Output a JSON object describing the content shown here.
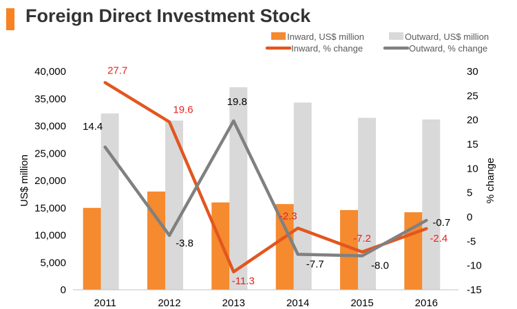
{
  "title": "Foreign Direct Investment Stock",
  "colors": {
    "accent": "#f7821f",
    "inward_bar": "#f58a2f",
    "outward_bar": "#d9d9d9",
    "inward_line": "#e2561f",
    "outward_line": "#808080",
    "inward_label": "#e8201e",
    "outward_label": "#000000"
  },
  "chart_data": {
    "type": "bar",
    "categories": [
      "2011",
      "2012",
      "2013",
      "2014",
      "2015",
      "2016"
    ],
    "series": [
      {
        "name": "Inward, US$ million",
        "type": "bar",
        "axis": "left",
        "values": [
          15000,
          18000,
          16000,
          15700,
          14600,
          14200
        ]
      },
      {
        "name": "Outward, US$ million",
        "type": "bar",
        "axis": "left",
        "values": [
          32300,
          31000,
          37100,
          34300,
          31500,
          31200
        ]
      },
      {
        "name": "Inward, % change",
        "type": "line",
        "axis": "right",
        "values": [
          27.7,
          19.6,
          -11.3,
          -2.3,
          -7.2,
          -2.4
        ],
        "labels": [
          "27.7",
          "19.6",
          "-11.3",
          "-2.3",
          "-7.2",
          "-2.4"
        ]
      },
      {
        "name": "Outward, % change",
        "type": "line",
        "axis": "right",
        "values": [
          14.4,
          -3.8,
          19.8,
          -7.7,
          -8.0,
          -0.7
        ],
        "labels": [
          "14.4",
          "-3.8",
          "19.8",
          "-7.7",
          "-8.0",
          "-0.7"
        ]
      }
    ],
    "ylabel": "US$ million",
    "y2label": "% change",
    "ylim": [
      0,
      40000
    ],
    "y2lim": [
      -15,
      30
    ],
    "yticks": [
      "0",
      "5,000",
      "10,000",
      "15,000",
      "20,000",
      "25,000",
      "30,000",
      "35,000",
      "40,000"
    ],
    "y2ticks": [
      "-15",
      "-10",
      "-5",
      "0",
      "5",
      "10",
      "15",
      "20",
      "25",
      "30"
    ],
    "grid": false,
    "legend_position": "top-right"
  }
}
